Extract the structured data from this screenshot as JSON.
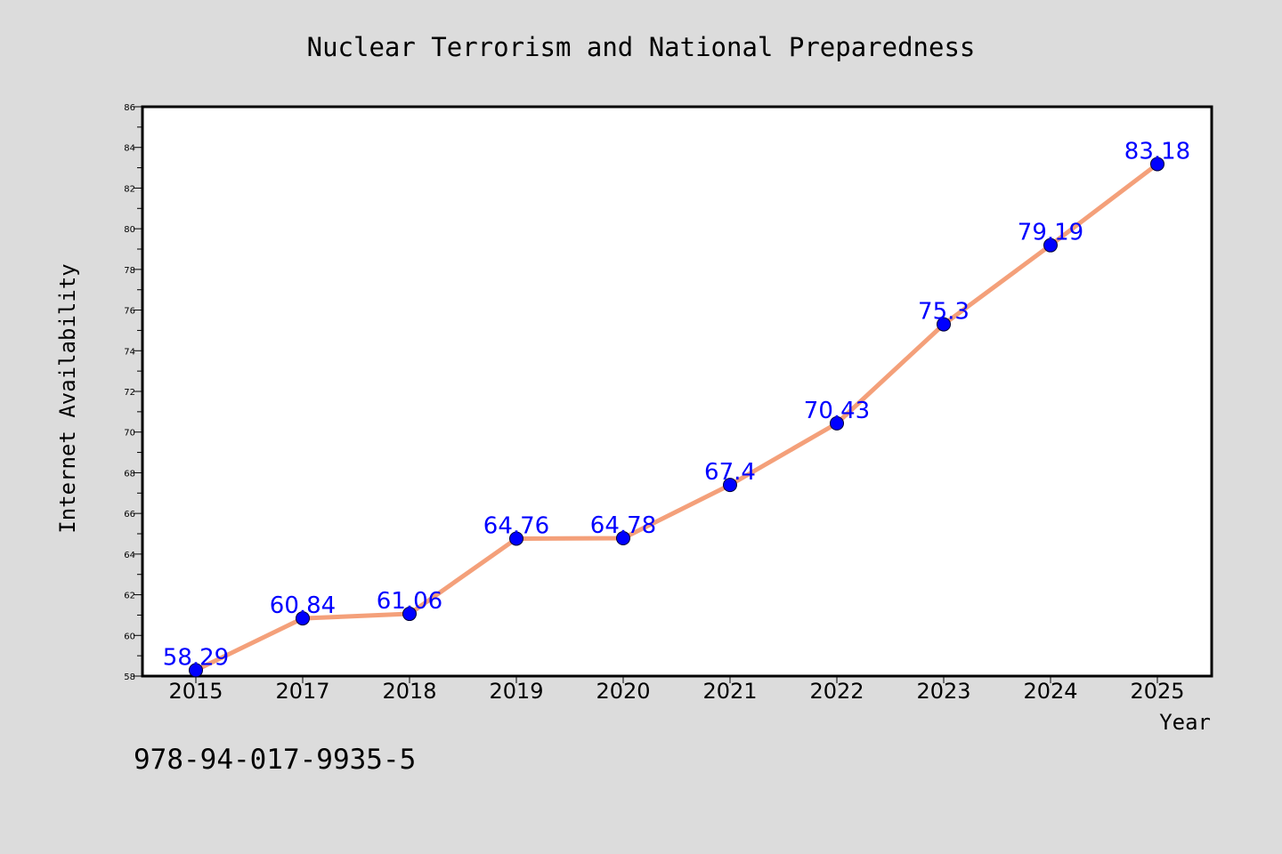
{
  "chart_data": {
    "type": "line",
    "title": "Nuclear Terrorism and National Preparedness",
    "xlabel": "Year",
    "ylabel": "Internet Availability",
    "categories": [
      "2015",
      "2017",
      "2018",
      "2019",
      "2020",
      "2021",
      "2022",
      "2023",
      "2024",
      "2025"
    ],
    "series": [
      {
        "values": [
          58.29,
          60.84,
          61.06,
          64.76,
          64.78,
          67.4,
          70.43,
          75.3,
          79.19,
          83.18
        ],
        "labels": [
          "58.29",
          "60.84",
          "61.06",
          "64.76",
          "64.78",
          "67.4",
          "70.43",
          "75.3",
          "79.19",
          "83.18"
        ]
      }
    ],
    "ylim": [
      58,
      86
    ],
    "yticks": [
      "58",
      "60",
      "62",
      "64",
      "66",
      "68",
      "70",
      "72",
      "74",
      "76",
      "78",
      "80",
      "82",
      "84",
      "86"
    ],
    "grid": false,
    "line_color": "#f4a07a",
    "marker_color": "#0000ff",
    "label_color": "#0000ff"
  },
  "footer": {
    "isbn": "978-94-017-9935-5"
  }
}
